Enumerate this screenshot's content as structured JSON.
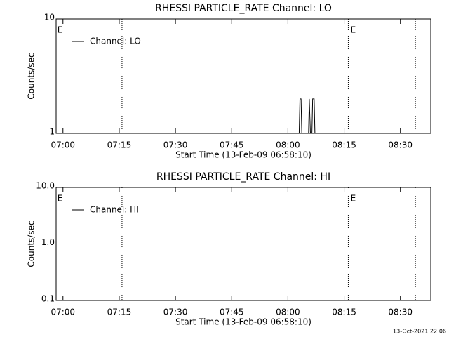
{
  "chart_data": [
    {
      "type": "line",
      "title": "RHESSI PARTICLE_RATE Channel: LO",
      "xlabel": "Start Time (13-Feb-09 06:58:10)",
      "ylabel": "Counts/sec",
      "xlim": [
        -1.83,
        98.1
      ],
      "xticks": [
        {
          "value": 0,
          "label": "07:00"
        },
        {
          "value": 15,
          "label": "07:15"
        },
        {
          "value": 30,
          "label": "07:30"
        },
        {
          "value": 45,
          "label": "07:45"
        },
        {
          "value": 60,
          "label": "08:00"
        },
        {
          "value": 75,
          "label": "08:15"
        },
        {
          "value": 90,
          "label": "08:30"
        }
      ],
      "ylim": [
        1,
        10
      ],
      "yticks": [
        1,
        10
      ],
      "log_y": true,
      "legend": "top-left",
      "vlines": [
        15.75,
        76.1,
        94
      ],
      "annotations": [
        {
          "text": "E",
          "x": -1.5
        },
        {
          "text": "E",
          "x": 76.7
        }
      ],
      "series": [
        {
          "name": "Channel: LO",
          "color": "#000000",
          "x": [
            63.0,
            63.2,
            63.5,
            63.7,
            65.5,
            65.7,
            66.0,
            66.4,
            66.6,
            67.0,
            67.2,
            67.6
          ],
          "values": [
            1,
            2,
            2,
            1,
            1,
            2,
            1,
            1,
            2,
            2,
            1,
            1
          ]
        }
      ]
    },
    {
      "type": "line",
      "title": "RHESSI PARTICLE_RATE Channel: HI",
      "xlabel": "Start Time (13-Feb-09 06:58:10)",
      "ylabel": "Counts/sec",
      "xlim": [
        -1.83,
        98.1
      ],
      "xticks": [
        {
          "value": 0,
          "label": "07:00"
        },
        {
          "value": 15,
          "label": "07:15"
        },
        {
          "value": 30,
          "label": "07:30"
        },
        {
          "value": 45,
          "label": "07:45"
        },
        {
          "value": 60,
          "label": "08:00"
        },
        {
          "value": 75,
          "label": "08:15"
        },
        {
          "value": 90,
          "label": "08:30"
        }
      ],
      "ylim": [
        0.1,
        10
      ],
      "yticks": [
        {
          "value": 0.1,
          "label": "0.1"
        },
        {
          "value": 1,
          "label": "1.0"
        },
        {
          "value": 10,
          "label": "10.0"
        }
      ],
      "log_y": true,
      "legend": "top-left",
      "vlines": [
        15.75,
        76.1,
        94
      ],
      "annotations": [
        {
          "text": "E",
          "x": -1.5
        },
        {
          "text": "E",
          "x": 76.7
        }
      ],
      "series": [
        {
          "name": "Channel: HI",
          "color": "#000000",
          "x": [],
          "values": []
        }
      ]
    }
  ],
  "footer": "13-Oct-2021 22:06"
}
